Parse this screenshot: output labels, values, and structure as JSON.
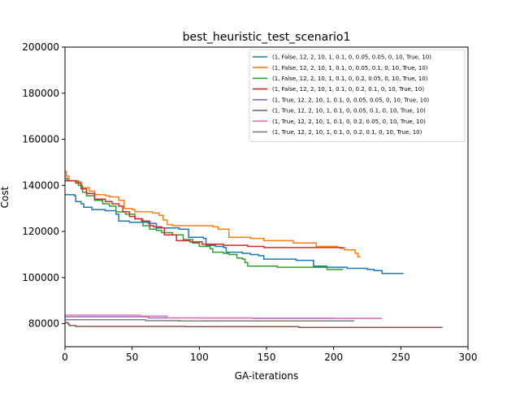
{
  "chart_data": {
    "type": "line",
    "title": "best_heuristic_test_scenario1",
    "xlabel": "GA-iterations",
    "ylabel": "Cost",
    "xlim": [
      0,
      300
    ],
    "ylim": [
      70000,
      200000
    ],
    "xticks": [
      0,
      50,
      100,
      150,
      200,
      250,
      300
    ],
    "yticks": [
      80000,
      100000,
      120000,
      140000,
      160000,
      180000,
      200000
    ],
    "grid": false,
    "legend_position": "top-right",
    "series": [
      {
        "name": "(1, False, 12, 2, 10, 1, 0.1, 0, 0.05, 0.05, 0, 10, True, 10)",
        "color": "#1f77b4",
        "points": [
          [
            0,
            136000
          ],
          [
            7,
            135500
          ],
          [
            8,
            133000
          ],
          [
            12,
            132000
          ],
          [
            14,
            130500
          ],
          [
            20,
            129500
          ],
          [
            30,
            129000
          ],
          [
            38,
            127500
          ],
          [
            40,
            124500
          ],
          [
            48,
            124000
          ],
          [
            62,
            123500
          ],
          [
            68,
            121500
          ],
          [
            85,
            121000
          ],
          [
            92,
            117500
          ],
          [
            103,
            117000
          ],
          [
            105,
            114000
          ],
          [
            112,
            113500
          ],
          [
            118,
            113000
          ],
          [
            120,
            111000
          ],
          [
            132,
            110500
          ],
          [
            138,
            110000
          ],
          [
            144,
            109500
          ],
          [
            148,
            108000
          ],
          [
            172,
            107500
          ],
          [
            185,
            105000
          ],
          [
            195,
            104500
          ],
          [
            210,
            104000
          ],
          [
            225,
            103500
          ],
          [
            230,
            103000
          ],
          [
            236,
            101800
          ],
          [
            252,
            101800
          ]
        ]
      },
      {
        "name": "(1, False, 12, 2, 10, 1, 0.1, 0, 0.05, 0.1, 0, 10, True, 10)",
        "color": "#ff7f0e",
        "points": [
          [
            0,
            146000
          ],
          [
            1,
            144000
          ],
          [
            3,
            142000
          ],
          [
            8,
            141500
          ],
          [
            12,
            139000
          ],
          [
            18,
            137500
          ],
          [
            22,
            136000
          ],
          [
            30,
            135500
          ],
          [
            33,
            135000
          ],
          [
            40,
            133500
          ],
          [
            44,
            130000
          ],
          [
            50,
            129500
          ],
          [
            52,
            128500
          ],
          [
            65,
            128000
          ],
          [
            70,
            127000
          ],
          [
            73,
            125000
          ],
          [
            76,
            123000
          ],
          [
            80,
            122500
          ],
          [
            100,
            122500
          ],
          [
            110,
            122000
          ],
          [
            114,
            121000
          ],
          [
            122,
            117500
          ],
          [
            138,
            117000
          ],
          [
            148,
            116000
          ],
          [
            170,
            115000
          ],
          [
            187,
            113500
          ],
          [
            203,
            113000
          ],
          [
            208,
            112000
          ],
          [
            216,
            110500
          ],
          [
            218,
            109000
          ],
          [
            220,
            109000
          ]
        ]
      },
      {
        "name": "(1, False, 12, 2, 10, 1, 0.1, 0, 0.2, 0.05, 0, 10, True, 10)",
        "color": "#2ca02c",
        "points": [
          [
            0,
            143000
          ],
          [
            2,
            142000
          ],
          [
            10,
            140000
          ],
          [
            13,
            137000
          ],
          [
            16,
            135500
          ],
          [
            22,
            133500
          ],
          [
            28,
            132000
          ],
          [
            33,
            131000
          ],
          [
            38,
            128500
          ],
          [
            45,
            127500
          ],
          [
            52,
            125500
          ],
          [
            58,
            122500
          ],
          [
            63,
            121000
          ],
          [
            68,
            120500
          ],
          [
            72,
            119500
          ],
          [
            80,
            118500
          ],
          [
            88,
            116500
          ],
          [
            95,
            115000
          ],
          [
            100,
            113500
          ],
          [
            108,
            112500
          ],
          [
            110,
            111000
          ],
          [
            118,
            110500
          ],
          [
            122,
            110000
          ],
          [
            128,
            108500
          ],
          [
            132,
            108000
          ],
          [
            134,
            106500
          ],
          [
            136,
            105000
          ],
          [
            145,
            105000
          ],
          [
            158,
            104500
          ],
          [
            185,
            104500
          ],
          [
            195,
            103500
          ],
          [
            207,
            103500
          ]
        ]
      },
      {
        "name": "(1, False, 12, 2, 10, 1, 0.1, 0, 0.2, 0.1, 0, 10, True, 10)",
        "color": "#d62728",
        "points": [
          [
            0,
            142000
          ],
          [
            5,
            142000
          ],
          [
            8,
            141000
          ],
          [
            12,
            138500
          ],
          [
            16,
            136500
          ],
          [
            22,
            134000
          ],
          [
            30,
            133000
          ],
          [
            35,
            132000
          ],
          [
            40,
            131000
          ],
          [
            43,
            128500
          ],
          [
            48,
            126500
          ],
          [
            52,
            125500
          ],
          [
            57,
            124500
          ],
          [
            63,
            122500
          ],
          [
            66,
            122000
          ],
          [
            72,
            121500
          ],
          [
            74,
            118500
          ],
          [
            83,
            116000
          ],
          [
            93,
            115500
          ],
          [
            100,
            115500
          ],
          [
            102,
            114500
          ],
          [
            110,
            114500
          ],
          [
            118,
            114000
          ],
          [
            136,
            113500
          ],
          [
            148,
            113000
          ],
          [
            160,
            113000
          ],
          [
            176,
            113000
          ],
          [
            205,
            112800
          ],
          [
            207,
            112500
          ]
        ]
      },
      {
        "name": "(1, True, 12, 2, 10, 1, 0.1, 0, 0.05, 0.05, 0, 10, True, 10)",
        "color": "#9467bd",
        "points": [
          [
            0,
            83000
          ],
          [
            60,
            83000
          ],
          [
            62,
            82500
          ],
          [
            100,
            82500
          ],
          [
            140,
            82300
          ],
          [
            236,
            82300
          ]
        ]
      },
      {
        "name": "(1, True, 12, 2, 10, 1, 0.1, 0, 0.05, 0.1, 0, 10, True, 10)",
        "color": "#8c564b",
        "points": [
          [
            0,
            80500
          ],
          [
            2,
            80000
          ],
          [
            3,
            79200
          ],
          [
            8,
            78800
          ],
          [
            60,
            78800
          ],
          [
            90,
            78700
          ],
          [
            120,
            78700
          ],
          [
            172,
            78700
          ],
          [
            174,
            78400
          ],
          [
            281,
            78400
          ]
        ]
      },
      {
        "name": "(1, True, 12, 2, 10, 1, 0.1, 0, 0.2, 0.05, 0, 10, True, 10)",
        "color": "#e377c2",
        "points": [
          [
            0,
            83700
          ],
          [
            40,
            83700
          ],
          [
            56,
            83300
          ],
          [
            75,
            83200
          ],
          [
            76,
            82500
          ],
          [
            100,
            82400
          ],
          [
            200,
            82300
          ],
          [
            236,
            82300
          ]
        ]
      },
      {
        "name": "(1, True, 12, 2, 10, 1, 0.1, 0, 0.2, 0.1, 0, 10, True, 10)",
        "color": "#7f7f7f",
        "points": [
          [
            0,
            81700
          ],
          [
            58,
            81700
          ],
          [
            60,
            81300
          ],
          [
            85,
            81200
          ],
          [
            150,
            81200
          ],
          [
            215,
            81100
          ]
        ]
      }
    ]
  }
}
